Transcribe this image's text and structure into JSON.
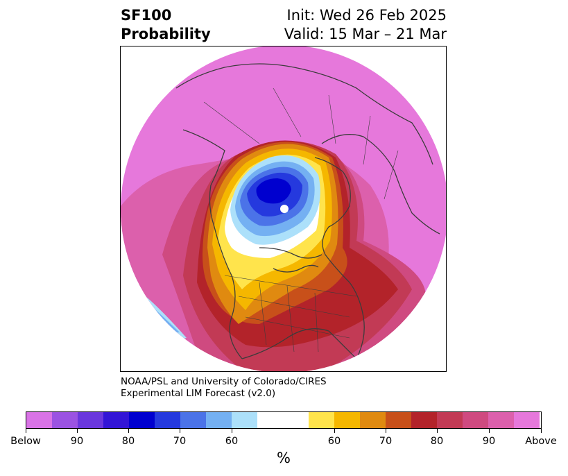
{
  "title": {
    "product": "SF100",
    "subtitle": "Probability",
    "init": "Init: Wed 26 Feb 2025",
    "valid": "Valid: 15 Mar – 21 Mar"
  },
  "credit": {
    "line1": "NOAA/PSL and University of Colorado/CIRES",
    "line2": "Experimental LIM Forecast (v2.0)"
  },
  "colorbar": {
    "unit": "%",
    "colors": [
      "#d973e6",
      "#9b53e2",
      "#6a37dd",
      "#3315d6",
      "#0000cf",
      "#2539de",
      "#4b73e8",
      "#74b0f2",
      "#ace0fa",
      "#ffffff",
      "#ffe44c",
      "#f5b700",
      "#e08a10",
      "#c8501a",
      "#b3232a",
      "#c23a55",
      "#cf4a80",
      "#dc60ac",
      "#e678db"
    ],
    "labels": [
      "Below",
      "90",
      "80",
      "70",
      "60",
      "60",
      "70",
      "80",
      "90",
      "Above"
    ]
  },
  "map": {
    "projection": "polar-stereographic",
    "field": "SF100 probability",
    "colors": {
      "above_high": "#e678db",
      "above_90": "#dc60ac",
      "above_85": "#cf4a80",
      "above_80": "#c23a55",
      "above_75": "#b3232a",
      "above_70": "#c8501a",
      "above_65": "#e08a10",
      "above_60": "#f5b700",
      "above_55": "#ffe44c",
      "below_60": "#ace0fa",
      "below_65": "#74b0f2",
      "below_70": "#4b73e8",
      "below_75": "#2539de",
      "below_80": "#0000cf",
      "coast": "#3c3c3c"
    }
  }
}
